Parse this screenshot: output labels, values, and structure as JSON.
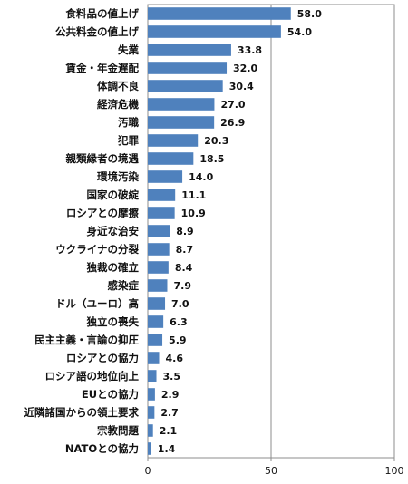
{
  "chart_data": {
    "type": "bar",
    "orientation": "horizontal",
    "categories": [
      "食料品の値上げ",
      "公共料金の値上げ",
      "失業",
      "賃金・年金遅配",
      "体調不良",
      "経済危機",
      "汚職",
      "犯罪",
      "親類縁者の境遇",
      "環境汚染",
      "国家の破綻",
      "ロシアとの摩擦",
      "身近な治安",
      "ウクライナの分裂",
      "独裁の確立",
      "感染症",
      "ドル（ユーロ）高",
      "独立の喪失",
      "民主主義・言論の抑圧",
      "ロシアとの協力",
      "ロシア語の地位向上",
      "EUとの協力",
      "近隣諸国からの領土要求",
      "宗教問題",
      "NATOとの協力"
    ],
    "values": [
      58.0,
      54.0,
      33.8,
      32.0,
      30.4,
      27.0,
      26.9,
      20.3,
      18.5,
      14.0,
      11.1,
      10.9,
      8.9,
      8.7,
      8.4,
      7.9,
      7.0,
      6.3,
      5.9,
      4.6,
      3.5,
      2.9,
      2.7,
      2.1,
      1.4
    ],
    "value_labels": [
      "58.0",
      "54.0",
      "33.8",
      "32.0",
      "30.4",
      "27.0",
      "26.9",
      "20.3",
      "18.5",
      "14.0",
      "11.1",
      "10.9",
      "8.9",
      "8.7",
      "8.4",
      "7.9",
      "7.0",
      "6.3",
      "5.9",
      "4.6",
      "3.5",
      "2.9",
      "2.7",
      "2.1",
      "1.4"
    ],
    "xlim": [
      0,
      100
    ],
    "xticks": [
      "0",
      "50",
      "100"
    ],
    "gridlines_at": [
      50
    ],
    "bar_color": "#4f81bd",
    "grid_color": "#8c8c8c",
    "legend": "none"
  }
}
